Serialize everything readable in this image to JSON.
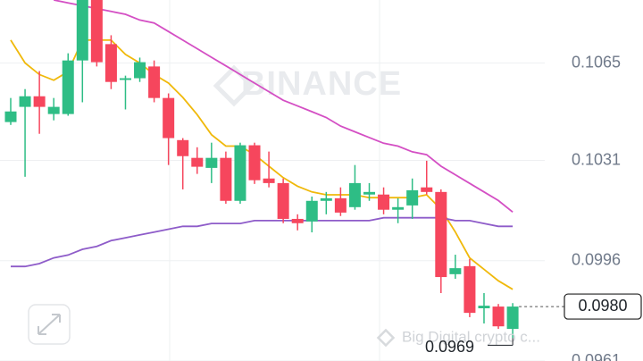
{
  "chart_data": {
    "type": "candlestick",
    "watermark": "BINANCE",
    "footer_watermark": "Big Digital crypto c...",
    "ylim": [
      0.0961,
      0.1087
    ],
    "yticks": [
      0.1065,
      0.1031,
      0.0996,
      0.0961
    ],
    "grid": true,
    "up_color": "#2ebd85",
    "down_color": "#f6465d",
    "open": [
      0.10444,
      0.10497,
      0.10534,
      0.10472,
      0.10472,
      0.10659,
      0.1087,
      0.10716,
      0.10591,
      0.10597,
      0.10638,
      0.10528,
      0.10381,
      0.10319,
      0.10284,
      0.10319,
      0.10169,
      0.10363,
      0.10247,
      0.10231,
      0.10106,
      0.10097,
      0.10169,
      0.10178,
      0.10147,
      0.10191,
      0.10191,
      0.10138,
      0.10153,
      0.10216,
      0.102,
      0.09913,
      0.09941,
      0.09794,
      0.098,
      0.09722
    ],
    "high": [
      0.10528,
      0.10559,
      0.10622,
      0.10528,
      0.10684,
      0.1087,
      0.1087,
      0.10747,
      0.10606,
      0.10669,
      0.10659,
      0.10544,
      0.10388,
      0.10356,
      0.10372,
      0.10341,
      0.10372,
      0.10372,
      0.10341,
      0.10247,
      0.10122,
      0.10184,
      0.102,
      0.10216,
      0.10294,
      0.10231,
      0.10216,
      0.10178,
      0.10247,
      0.10309,
      0.10209,
      0.09981,
      0.09966,
      0.09847,
      0.09809,
      0.09812
    ],
    "low": [
      0.10434,
      0.10253,
      0.10403,
      0.1045,
      0.10466,
      0.10513,
      0.10638,
      0.10559,
      0.10488,
      0.10584,
      0.10513,
      0.10294,
      0.10209,
      0.10263,
      0.10231,
      0.10159,
      0.10159,
      0.10228,
      0.10216,
      0.10091,
      0.10066,
      0.10059,
      0.10122,
      0.10116,
      0.10138,
      0.10169,
      0.10122,
      0.10091,
      0.10106,
      0.10191,
      0.09847,
      0.09897,
      0.09763,
      0.09741,
      0.09722,
      0.0969
    ],
    "close": [
      0.10481,
      0.10534,
      0.10497,
      0.10497,
      0.10659,
      0.1087,
      0.10653,
      0.10584,
      0.10597,
      0.10653,
      0.10528,
      0.10388,
      0.10325,
      0.10288,
      0.10319,
      0.10169,
      0.10363,
      0.10241,
      0.10231,
      0.10106,
      0.10091,
      0.10169,
      0.10178,
      0.10128,
      0.10231,
      0.102,
      0.10138,
      0.10147,
      0.10206,
      0.102,
      0.09903,
      0.09934,
      0.09778,
      0.09803,
      0.09731,
      0.098
    ],
    "moving_averages": [
      {
        "color": "#f0b90b",
        "values": [
          0.1073,
          0.1065,
          0.1061,
          0.1059,
          0.1062,
          0.1073,
          0.1073,
          0.1073,
          0.1068,
          0.1065,
          0.1061,
          0.1058,
          0.1053,
          0.1047,
          0.104,
          0.1036,
          0.1036,
          0.1033,
          0.1029,
          0.1025,
          0.1022,
          0.102,
          0.1019,
          0.1019,
          0.1019,
          0.1018,
          0.1018,
          0.1018,
          0.1018,
          0.1019,
          0.1014,
          0.1006,
          0.0997,
          0.0993,
          0.0989,
          0.0986
        ]
      },
      {
        "color": "#d44fc4",
        "values": [
          null,
          null,
          null,
          0.1087,
          0.1086,
          0.1085,
          0.1084,
          0.1083,
          0.1082,
          0.108,
          0.1079,
          0.1076,
          0.1073,
          0.107,
          0.1067,
          0.1064,
          0.1061,
          0.1058,
          0.1055,
          0.1052,
          0.105,
          0.1048,
          0.1046,
          0.1043,
          0.1041,
          0.1039,
          0.1037,
          0.1036,
          0.1034,
          0.1033,
          0.1029,
          0.1026,
          0.1023,
          0.102,
          0.1017,
          0.1013
        ]
      },
      {
        "color": "#8e5cc9",
        "values": [
          0.0994,
          0.0994,
          0.0995,
          0.0997,
          0.0998,
          0.1,
          0.1001,
          0.1003,
          0.1004,
          0.1005,
          0.1006,
          0.1007,
          0.1008,
          0.1008,
          0.1009,
          0.1009,
          0.1009,
          0.101,
          0.101,
          0.101,
          0.101,
          0.101,
          0.101,
          0.101,
          0.101,
          0.101,
          0.1011,
          0.1011,
          0.1011,
          0.1011,
          0.1011,
          0.101,
          0.101,
          0.1009,
          0.1008,
          0.1008
        ]
      }
    ],
    "current_price": {
      "value": 0.098,
      "label": "0.0980"
    },
    "low_price": 0.0969
  }
}
